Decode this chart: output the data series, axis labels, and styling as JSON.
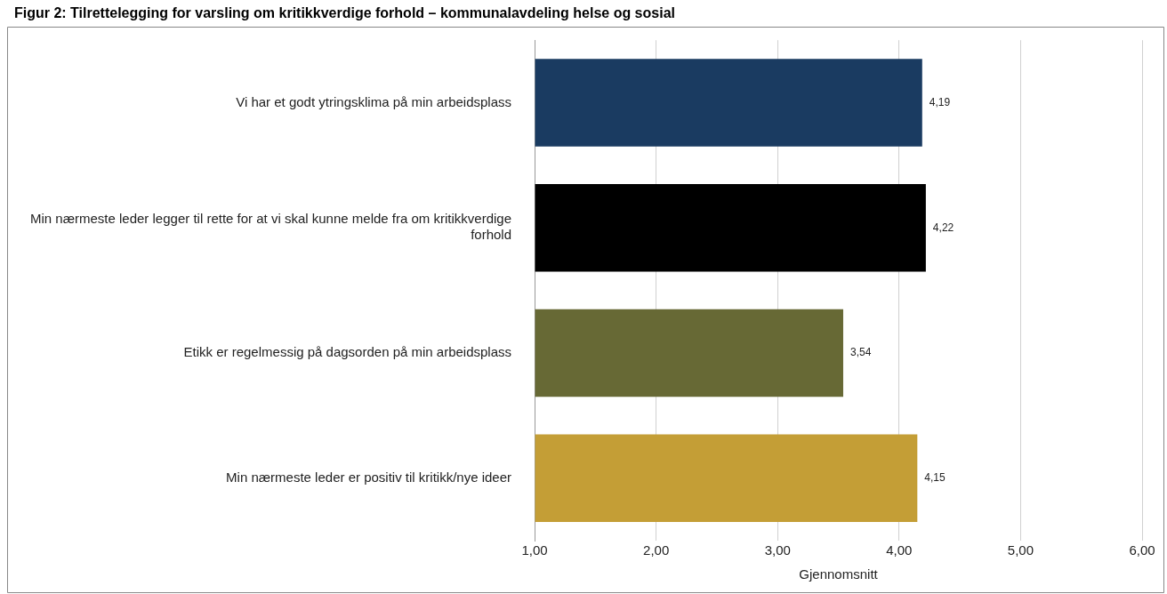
{
  "chart_data": {
    "type": "bar",
    "orientation": "horizontal",
    "title": "Figur 2: Tilrettelegging for varsling om kritikkverdige forhold – kommunalavdeling helse og sosial",
    "xlabel": "Gjennomsnitt",
    "categories": [
      "Vi har et godt ytringsklima på min arbeidsplass",
      "Min nærmeste leder legger til rette for at vi skal kunne melde fra om kritikkverdige forhold",
      "Etikk er regelmessig på dagsorden på min arbeidsplass",
      "Min nærmeste leder er positiv til kritikk/nye ideer"
    ],
    "values": [
      4.19,
      4.22,
      3.54,
      4.15
    ],
    "value_labels": [
      "4,19",
      "4,22",
      "3,54",
      "4,15"
    ],
    "colors": [
      "#1a3b61",
      "#000000",
      "#676935",
      "#c49e36"
    ],
    "xlim": [
      1,
      6
    ],
    "xticks": [
      {
        "value": 1,
        "label": "1,00"
      },
      {
        "value": 2,
        "label": "2,00"
      },
      {
        "value": 3,
        "label": "3,00"
      },
      {
        "value": 4,
        "label": "4,00"
      },
      {
        "value": 5,
        "label": "5,00"
      },
      {
        "value": 6,
        "label": "6,00"
      }
    ],
    "grid": "x",
    "legend": false
  }
}
